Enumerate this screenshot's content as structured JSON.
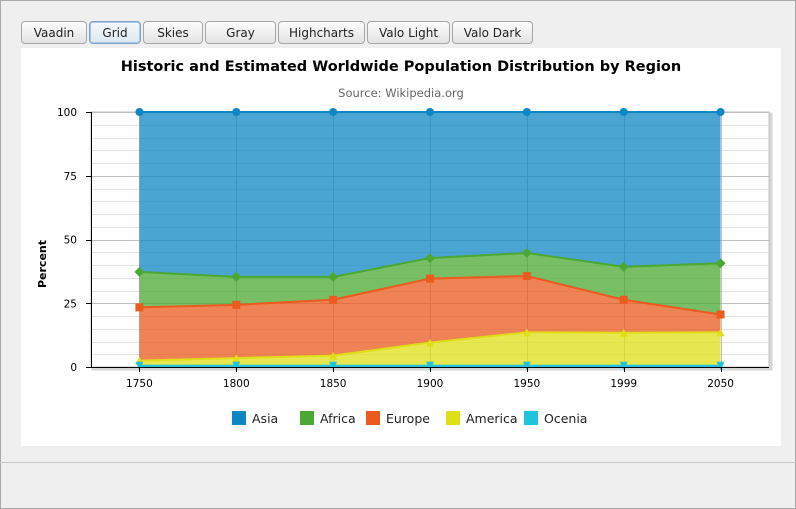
{
  "tabs": [
    {
      "label": "Vaadin",
      "selected": false
    },
    {
      "label": "Grid",
      "selected": true
    },
    {
      "label": "Skies",
      "selected": false
    },
    {
      "label": "Gray",
      "selected": false
    },
    {
      "label": "Highcharts",
      "selected": false
    },
    {
      "label": "Valo Light",
      "selected": false
    },
    {
      "label": "Valo Dark",
      "selected": false
    }
  ],
  "chart_data": {
    "type": "area",
    "stacking": "percent",
    "title": "Historic and Estimated Worldwide Population Distribution by Region",
    "subtitle": "Source: Wikipedia.org",
    "xlabel": "",
    "ylabel": "Percent",
    "categories": [
      "1750",
      "1800",
      "1850",
      "1900",
      "1950",
      "1999",
      "2050"
    ],
    "ylim": [
      0,
      100
    ],
    "yticks": [
      0,
      25,
      50,
      75,
      100
    ],
    "grid": true,
    "legend_position": "bottom",
    "series": [
      {
        "name": "Asia",
        "color": "#0d87c4",
        "marker": "circle",
        "values": [
          63,
          65,
          65,
          57,
          55,
          61,
          59
        ]
      },
      {
        "name": "Africa",
        "color": "#4ba832",
        "marker": "diamond",
        "values": [
          14,
          11,
          9,
          8,
          9,
          13,
          20
        ]
      },
      {
        "name": "Europe",
        "color": "#eb5a1e",
        "marker": "square",
        "values": [
          21,
          21,
          22,
          25,
          22,
          13,
          7
        ]
      },
      {
        "name": "America",
        "color": "#dfdf18",
        "marker": "triangle",
        "values": [
          2,
          3,
          4,
          9,
          13,
          13,
          13
        ]
      },
      {
        "name": "Ocenia",
        "color": "#1ec3dc",
        "marker": "triangle-down",
        "values": [
          0.5,
          0.5,
          0.5,
          0.5,
          0.5,
          0.5,
          0.5
        ]
      }
    ]
  }
}
